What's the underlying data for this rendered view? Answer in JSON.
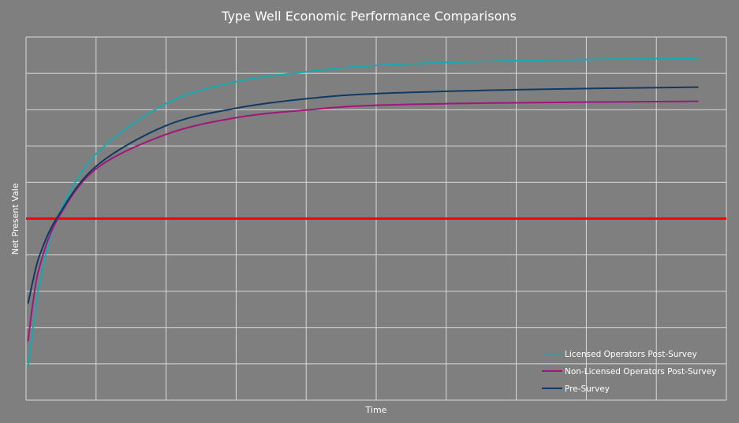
{
  "chart_data": {
    "type": "line",
    "title": "Type Well Economic Performance Comparisons",
    "xlabel": "Time",
    "ylabel": "Net Present Vale",
    "xlim": [
      0,
      10
    ],
    "ylim": [
      -5,
      5
    ],
    "grid": true,
    "tick_labels_shown": false,
    "legend_position": "bottom-right",
    "reference_line": {
      "y": 0,
      "color": "#ff0000"
    },
    "x": [
      0.03,
      0.1,
      0.2,
      0.45,
      1,
      2,
      3,
      4,
      5,
      7,
      9.6
    ],
    "series": [
      {
        "name": "Licensed Operators Post-Survey",
        "color": "#17a9b0",
        "values": [
          -4.06,
          -3.0,
          -1.71,
          0.05,
          1.78,
          3.17,
          3.77,
          4.04,
          4.22,
          4.35,
          4.42
        ]
      },
      {
        "name": "Non-Licensed Operators Post-Survey",
        "color": "#a3157a",
        "values": [
          -3.38,
          -2.3,
          -1.28,
          -0.02,
          1.37,
          2.32,
          2.78,
          2.99,
          3.12,
          3.19,
          3.23
        ]
      },
      {
        "name": "Pre-Survey",
        "color": "#0e3a64",
        "values": [
          -2.34,
          -1.7,
          -0.98,
          0.05,
          1.44,
          2.56,
          3.04,
          3.3,
          3.44,
          3.55,
          3.62
        ]
      }
    ]
  }
}
